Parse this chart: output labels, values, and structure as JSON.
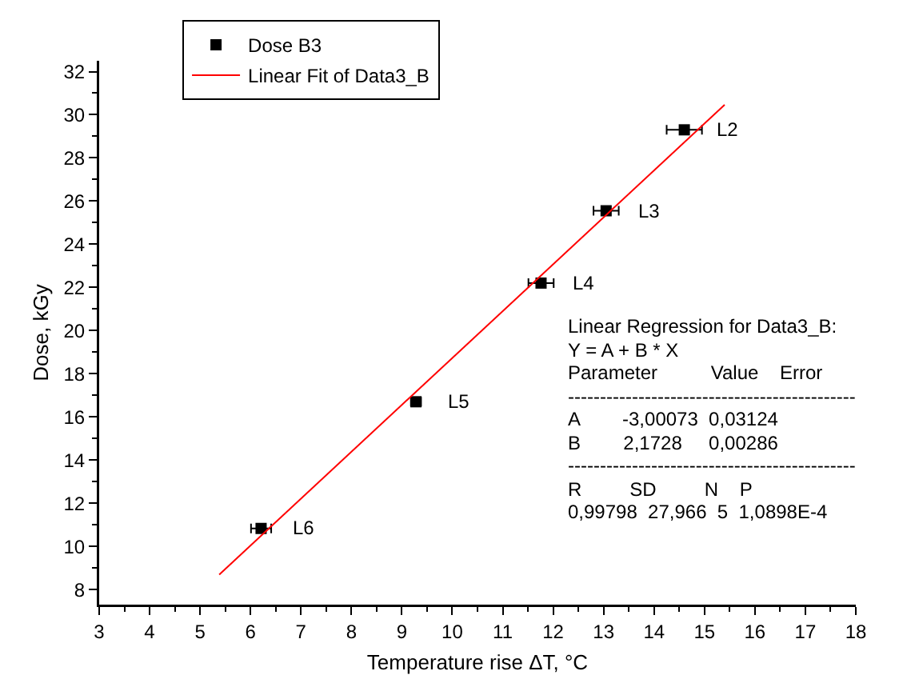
{
  "chart_data": {
    "type": "scatter",
    "xlabel": "Temperature rise ΔT, °C",
    "ylabel": "Dose, kGy",
    "xlim": [
      3,
      18
    ],
    "ylim": [
      7.3,
      32.5
    ],
    "xticks": [
      3,
      {
        "value": 3.5,
        "label": null
      },
      4,
      {
        "value": 4.5,
        "label": null
      },
      5,
      {
        "value": 5.5,
        "label": null
      },
      6,
      {
        "value": 6.5,
        "label": null
      },
      7,
      {
        "value": 7.5,
        "label": null
      },
      8,
      {
        "value": 8.5,
        "label": null
      },
      9,
      {
        "value": 9.5,
        "label": null
      },
      10,
      {
        "value": 10.5,
        "label": null
      },
      11,
      {
        "value": 11.5,
        "label": null
      },
      12,
      {
        "value": 12.5,
        "label": null
      },
      13,
      {
        "value": 13.5,
        "label": null
      },
      14,
      {
        "value": 14.5,
        "label": null
      },
      15,
      {
        "value": 15.5,
        "label": null
      },
      16,
      {
        "value": 16.5,
        "label": null
      },
      17,
      {
        "value": 17.5,
        "label": null
      },
      18
    ],
    "yticks": [
      8,
      {
        "value": 9,
        "label": null
      },
      10,
      {
        "value": 11,
        "label": null
      },
      12,
      {
        "value": 13,
        "label": null
      },
      14,
      {
        "value": 15,
        "label": null
      },
      16,
      {
        "value": 17,
        "label": null
      },
      18,
      {
        "value": 19,
        "label": null
      },
      20,
      {
        "value": 21,
        "label": null
      },
      22,
      {
        "value": 23,
        "label": null
      },
      24,
      {
        "value": 25,
        "label": null
      },
      26,
      {
        "value": 27,
        "label": null
      },
      28,
      {
        "value": 29,
        "label": null
      },
      30,
      {
        "value": 31,
        "label": null
      },
      32
    ],
    "grid": false,
    "legend": "top left",
    "series": [
      {
        "name": "Dose B3",
        "marker": "square",
        "color": "#000000",
        "x": [
          14.6,
          13.05,
          11.76,
          9.28,
          6.21
        ],
        "values": [
          29.3,
          25.55,
          22.2,
          16.7,
          10.83
        ],
        "xerrors": [
          0.35,
          0.25,
          0.25,
          0.1,
          0.2
        ]
      },
      {
        "name": "Linear Fit of Data3_B",
        "type": "line",
        "marker": "none",
        "line_style": "solid",
        "color": "#ff0000",
        "x": [
          5.38,
          15.4
        ],
        "values": [
          8.69,
          30.46
        ]
      }
    ],
    "annotations": [
      {
        "text": "L2",
        "x": 14.6,
        "y": 29.3
      },
      {
        "text": "L3",
        "x": 13.05,
        "y": 25.55
      },
      {
        "text": "L4",
        "x": 11.76,
        "y": 22.2
      },
      {
        "text": "L5",
        "x": 9.28,
        "y": 16.7
      },
      {
        "text": "L6",
        "x": 6.21,
        "y": 10.83
      },
      "Linear Regression for Data3_B:",
      "Y = A + B * X",
      "Parameter          Value    Error",
      "---------------------------------------------",
      "A        -3,00073  0,03124",
      "B        2,1728     0,00286",
      "---------------------------------------------",
      "R         SD         N    P",
      "0,99798  27,966  5  1,0898E-4"
    ]
  }
}
